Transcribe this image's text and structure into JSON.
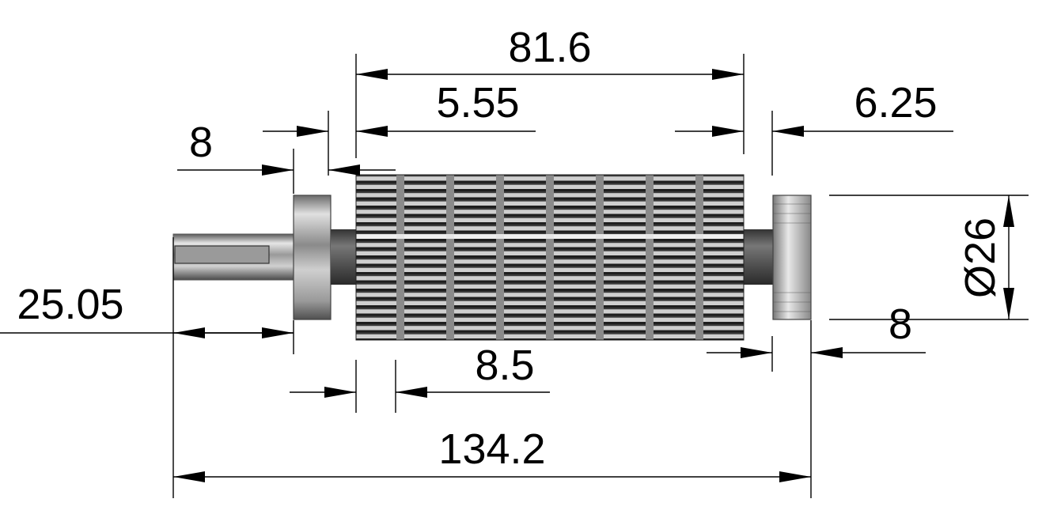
{
  "drawing": {
    "dimensions": {
      "overall_length": "134.2",
      "knurl_length": "81.6",
      "left_shaft_length": "25.05",
      "left_collar_width": "8",
      "right_collar_width": "8",
      "left_gap": "5.55",
      "right_gap": "6.25",
      "ring_pitch": "8.5",
      "collar_diameter": "Ø26"
    },
    "colors": {
      "ink": "#000000",
      "steel_dark": "#3c3c3c",
      "steel_light": "#d8d8d8",
      "knurl_dark": "#2a2a2a"
    }
  }
}
